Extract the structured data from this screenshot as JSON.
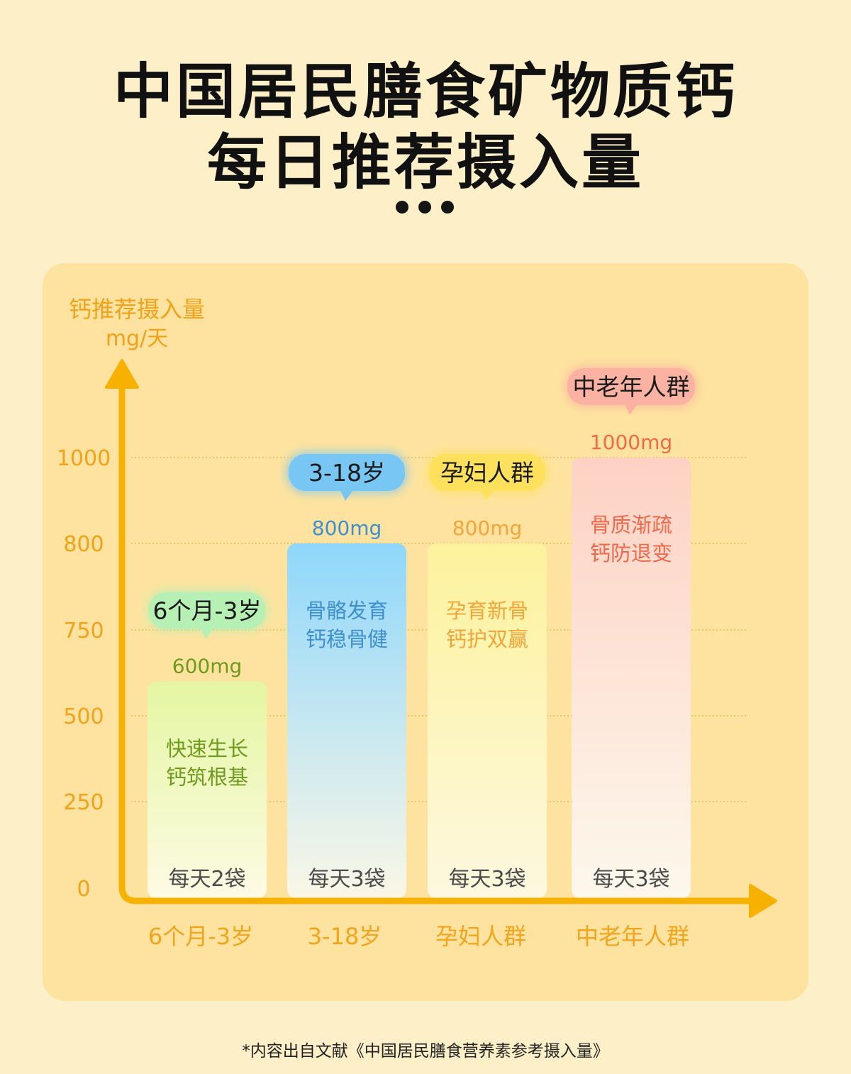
{
  "title": {
    "line1": "中国居民膳食矿物质钙",
    "line2": "每日推荐摄入量"
  },
  "footnote": "*内容出自文献《中国居民膳食营养素参考摄入量》",
  "chart_data": {
    "type": "bar",
    "ylabel": "钙推荐摄入量",
    "yunit": "mg/天",
    "ytick_labels": [
      "0",
      "250",
      "500",
      "750",
      "800",
      "1000"
    ],
    "grid": true,
    "categories": [
      "6个月-3岁",
      "3-18岁",
      "孕妇人群",
      "中老年人群"
    ],
    "values": [
      600,
      800,
      800,
      1000
    ],
    "value_labels": [
      "600mg",
      "800mg",
      "800mg",
      "1000mg"
    ],
    "bubbles": [
      "6个月-3岁",
      "3-18岁",
      "孕妇人群",
      "中老年人群"
    ],
    "descriptions": [
      [
        "快速生长",
        "钙筑根基"
      ],
      [
        "骨骼发育",
        "钙稳骨健"
      ],
      [
        "孕育新骨",
        "钙护双赢"
      ],
      [
        "骨质渐疏",
        "钙防退变"
      ]
    ],
    "dosage": [
      "每天2袋",
      "每天3袋",
      "每天3袋",
      "每天3袋"
    ],
    "colors": {
      "axis": "#f7b100",
      "axis_label": "#f0a21a",
      "category_label": "#f2a41c",
      "bar_top": [
        "#e4f6a2",
        "#8fd7fb",
        "#fdf29c",
        "#fdd2c4"
      ],
      "bar_bottom": [
        "#fdfbe4",
        "#fbf7e6",
        "#fdf8e0",
        "#fdf8ec"
      ],
      "bubble": [
        "#b7f0b5",
        "#78c6f4",
        "#fde15d",
        "#fbb2a2"
      ],
      "text": [
        "#6e9a1d",
        "#3f8fcf",
        "#f3a53a",
        "#ee6a4c"
      ]
    }
  }
}
